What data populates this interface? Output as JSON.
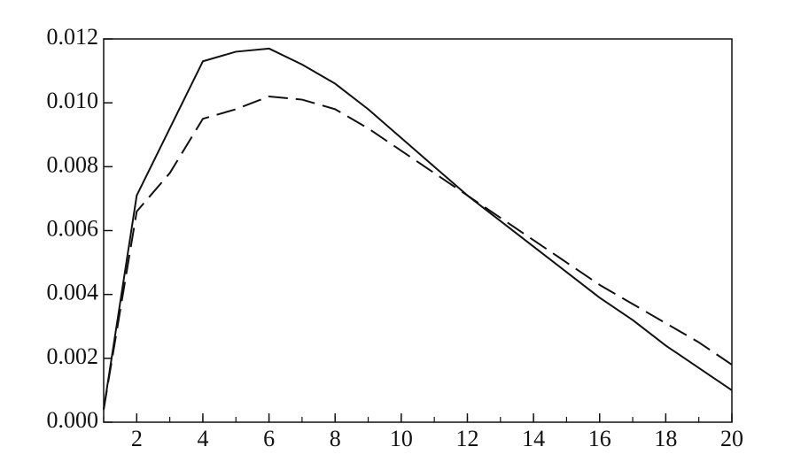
{
  "chart_data": {
    "type": "line",
    "x": [
      1,
      2,
      3,
      4,
      5,
      6,
      7,
      8,
      9,
      10,
      11,
      12,
      13,
      14,
      15,
      16,
      17,
      18,
      19,
      20
    ],
    "series": [
      {
        "color": "#111111",
        "style": "solid",
        "values": [
          0.0004,
          0.0071,
          0.0092,
          0.0113,
          0.0116,
          0.0117,
          0.0112,
          0.0106,
          0.0098,
          0.0089,
          0.008,
          0.0071,
          0.0063,
          0.0055,
          0.0047,
          0.0039,
          0.0032,
          0.0024,
          0.0017,
          0.001
        ]
      },
      {
        "color": "#111111",
        "style": "dashed",
        "values": [
          0.0004,
          0.0066,
          0.0078,
          0.0095,
          0.0098,
          0.0102,
          0.0101,
          0.0098,
          0.0092,
          0.0085,
          0.0078,
          0.0071,
          0.0064,
          0.0057,
          0.005,
          0.0043,
          0.0037,
          0.0031,
          0.0025,
          0.0018
        ]
      }
    ],
    "xlim": [
      1,
      20
    ],
    "xticks": [
      2,
      4,
      6,
      8,
      10,
      12,
      14,
      16,
      18,
      20
    ],
    "ylim": [
      0,
      0.012
    ],
    "yticks": [
      {
        "value": 0,
        "label": "0.000"
      },
      0.002,
      0.004,
      0.006,
      0.008,
      {
        "value": 0.01,
        "label": "0.010"
      },
      0.012
    ]
  }
}
